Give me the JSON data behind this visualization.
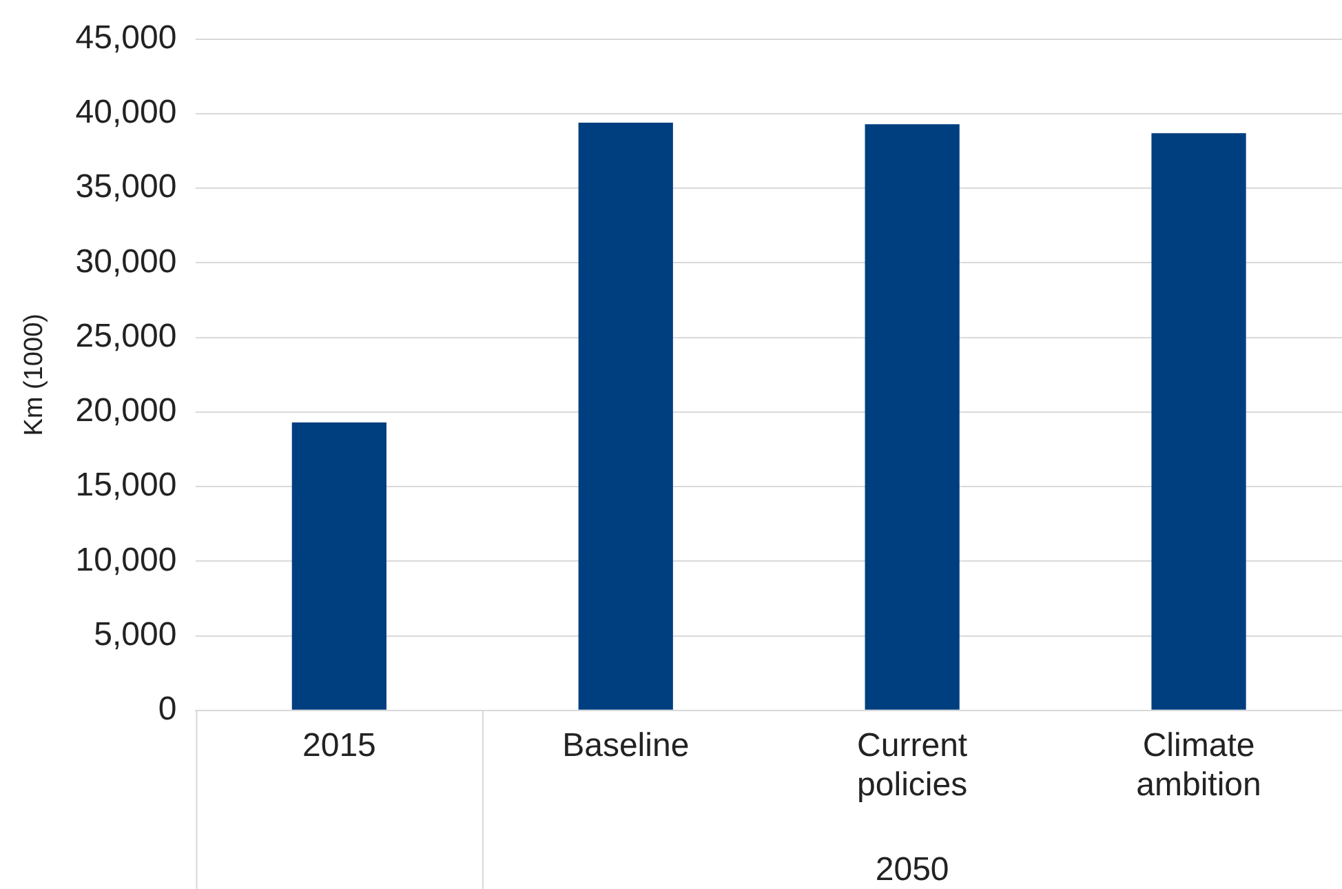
{
  "chart_data": {
    "type": "bar",
    "ylabel": "Km (1000)",
    "categories": [
      "2015",
      "Baseline",
      "Current policies",
      "Climate ambition"
    ],
    "values": [
      19300,
      39400,
      39300,
      38700
    ],
    "color": "#003f7f",
    "ylim": [
      0,
      45000
    ],
    "yticks": [
      {
        "value": 0,
        "label": "0"
      },
      {
        "value": 5000,
        "label": "5,000"
      },
      {
        "value": 10000,
        "label": "10,000"
      },
      {
        "value": 15000,
        "label": "15,000"
      },
      {
        "value": 20000,
        "label": "20,000"
      },
      {
        "value": 25000,
        "label": "25,000"
      },
      {
        "value": 30000,
        "label": "30,000"
      },
      {
        "value": 35000,
        "label": "35,000"
      },
      {
        "value": 40000,
        "label": "40,000"
      },
      {
        "value": 45000,
        "label": "45,000"
      }
    ],
    "grid": "y",
    "annotations": [
      "2050"
    ]
  }
}
